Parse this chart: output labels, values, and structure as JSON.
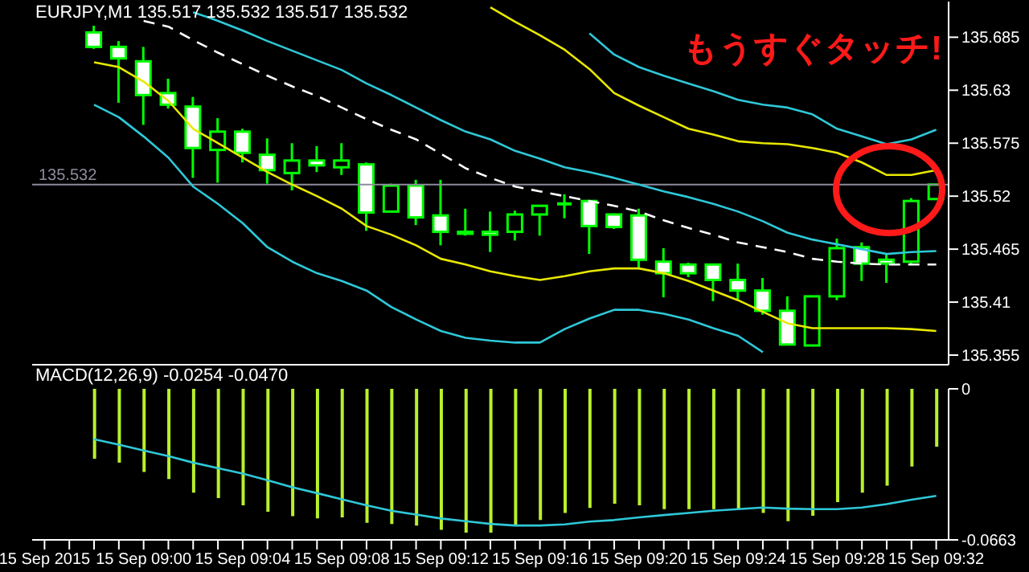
{
  "chart_data": [
    {
      "type": "candlestick",
      "title": "EURJPY,M1 135.517 135.532 135.517 135.532",
      "color": "#00ff00",
      "tick_labels": "y",
      "ohlc": [
        null,
        null,
        [
          135.69,
          135.697,
          135.673,
          135.675
        ],
        [
          135.675,
          135.681,
          135.617,
          135.663
        ],
        [
          135.66,
          135.675,
          135.594,
          135.625
        ],
        [
          135.627,
          135.642,
          135.611,
          135.615
        ],
        [
          135.613,
          135.623,
          135.539,
          135.57
        ],
        [
          135.568,
          135.601,
          135.534,
          135.587
        ],
        [
          135.587,
          135.59,
          135.555,
          135.565
        ],
        [
          135.563,
          135.58,
          135.533,
          135.547
        ],
        [
          135.544,
          135.575,
          135.526,
          135.557
        ],
        [
          135.557,
          135.572,
          135.545,
          135.552
        ],
        [
          135.55,
          135.575,
          135.542,
          135.557
        ],
        [
          135.553,
          135.555,
          135.484,
          135.503
        ],
        [
          135.504,
          135.533,
          135.504,
          135.531
        ],
        [
          135.531,
          135.537,
          135.49,
          135.498
        ],
        [
          135.5,
          135.537,
          135.469,
          135.483
        ],
        [
          135.483,
          135.507,
          135.479,
          135.481
        ],
        [
          135.483,
          135.504,
          135.462,
          135.48
        ],
        [
          135.483,
          135.505,
          135.474,
          135.501
        ],
        [
          135.501,
          135.51,
          135.479,
          135.51
        ],
        [
          135.512,
          135.522,
          135.497,
          135.512
        ],
        [
          135.515,
          135.515,
          135.46,
          135.489
        ],
        [
          135.501,
          135.502,
          135.486,
          135.488
        ],
        [
          135.5,
          135.507,
          135.444,
          135.454
        ],
        [
          135.452,
          135.466,
          135.415,
          135.44
        ],
        [
          135.449,
          135.451,
          135.436,
          135.44
        ],
        [
          135.449,
          135.45,
          135.411,
          135.433
        ],
        [
          135.433,
          135.45,
          135.413,
          135.422
        ],
        [
          135.422,
          135.435,
          135.397,
          135.401
        ],
        [
          135.401,
          135.416,
          135.366,
          135.366
        ],
        [
          135.365,
          135.416,
          135.365,
          135.416
        ],
        [
          135.416,
          135.476,
          135.412,
          135.466
        ],
        [
          135.467,
          135.472,
          135.432,
          135.45
        ],
        [
          135.454,
          135.46,
          135.43,
          135.45
        ],
        [
          135.452,
          135.518,
          135.45,
          135.515
        ],
        [
          135.517,
          135.532,
          135.517,
          135.532
        ]
      ],
      "series": [
        {
          "type": "line",
          "color": "#ffffff",
          "line_style": "dashed",
          "values": [
            null,
            null,
            null,
            null,
            135.702,
            135.696,
            135.682,
            135.669,
            135.657,
            135.645,
            135.634,
            135.624,
            135.612,
            135.6,
            135.589,
            135.579,
            135.564,
            135.549,
            135.539,
            135.53,
            135.525,
            135.52,
            135.515,
            135.51,
            135.504,
            135.495,
            135.487,
            135.48,
            135.472,
            135.467,
            135.462,
            135.455,
            135.452,
            135.45,
            135.449,
            135.449,
            135.449
          ]
        },
        {
          "type": "line",
          "color": "#e8e800",
          "values": [
            null,
            null,
            null,
            null,
            null,
            null,
            null,
            null,
            null,
            null,
            null,
            null,
            null,
            null,
            null,
            null,
            null,
            null,
            135.716,
            135.701,
            135.687,
            135.672,
            135.652,
            135.627,
            135.614,
            135.602,
            135.59,
            135.584,
            135.577,
            135.575,
            135.574,
            135.57,
            135.565,
            135.555,
            135.542,
            135.542,
            135.547
          ]
        },
        {
          "type": "line",
          "color": "#2ec8d8",
          "values": [
            null,
            null,
            null,
            null,
            null,
            null,
            null,
            null,
            null,
            null,
            null,
            null,
            null,
            null,
            null,
            null,
            null,
            null,
            null,
            null,
            null,
            null,
            135.689,
            135.667,
            135.654,
            135.645,
            135.637,
            135.629,
            135.62,
            135.615,
            135.612,
            135.605,
            135.59,
            135.582,
            135.574,
            135.579,
            135.589
          ]
        },
        {
          "type": "line",
          "color": "#2ec8d8",
          "values": [
            null,
            null,
            null,
            null,
            null,
            null,
            135.711,
            135.702,
            135.692,
            135.681,
            135.671,
            135.661,
            135.651,
            135.637,
            135.625,
            135.612,
            135.599,
            135.587,
            135.579,
            135.567,
            135.559,
            135.55,
            135.545,
            135.539,
            135.532,
            135.525,
            135.519,
            135.512,
            135.504,
            135.494,
            135.482,
            135.475,
            135.47,
            135.465,
            135.46,
            135.462,
            135.463
          ]
        },
        {
          "type": "line",
          "color": "#e8e800",
          "values": [
            null,
            null,
            135.659,
            135.654,
            135.639,
            135.619,
            135.59,
            135.575,
            135.56,
            135.545,
            135.532,
            135.52,
            135.507,
            135.489,
            135.48,
            135.469,
            135.455,
            135.449,
            135.442,
            135.437,
            135.433,
            135.437,
            135.442,
            135.445,
            135.445,
            135.44,
            135.432,
            135.422,
            135.412,
            135.4,
            135.388,
            135.383,
            135.383,
            135.383,
            135.383,
            135.382,
            135.38
          ]
        },
        {
          "type": "line",
          "color": "#2ec8d8",
          "values": [
            null,
            null,
            135.615,
            135.602,
            135.582,
            135.56,
            135.53,
            135.512,
            135.492,
            135.467,
            135.452,
            135.44,
            135.432,
            135.422,
            135.405,
            135.392,
            135.38,
            135.373,
            135.37,
            135.368,
            135.368,
            135.382,
            135.393,
            135.402,
            135.402,
            135.398,
            135.392,
            135.383,
            135.375,
            135.358,
            null,
            null,
            null,
            null,
            null,
            null,
            null
          ]
        }
      ],
      "ylim": [
        135.345,
        135.722
      ],
      "yticks": [
        135.355,
        135.41,
        135.465,
        135.52,
        135.575,
        135.63,
        135.685
      ],
      "ref_lines": [
        {
          "axis": "y",
          "value": 135.532,
          "label": "135.532",
          "color": "#8c8c9c"
        }
      ],
      "annotations": [
        "もうすぐタッチ!"
      ]
    },
    {
      "type": "bar",
      "title": "MACD(12,26,9) -0.0254 -0.0470",
      "categories": [
        "15 Sep 2015",
        null,
        null,
        null,
        "15 Sep 09:00",
        null,
        null,
        null,
        "15 Sep 09:04",
        null,
        null,
        null,
        "15 Sep 09:08",
        null,
        null,
        null,
        "15 Sep 09:12",
        null,
        null,
        null,
        "15 Sep 09:16",
        null,
        null,
        null,
        "15 Sep 09:20",
        null,
        null,
        null,
        "15 Sep 09:24",
        null,
        null,
        null,
        "15 Sep 09:28",
        null,
        null,
        null,
        "15 Sep 09:32"
      ],
      "series": [
        {
          "type": "bar",
          "color": "#b8f02c",
          "values": [
            null,
            null,
            -0.0307,
            -0.0324,
            -0.0365,
            -0.0396,
            -0.0456,
            -0.048,
            -0.0511,
            -0.054,
            -0.0559,
            -0.0569,
            -0.0564,
            -0.0588,
            -0.0593,
            -0.06,
            -0.0619,
            -0.0631,
            -0.0631,
            -0.06,
            -0.0576,
            -0.0545,
            -0.0523,
            -0.0504,
            -0.0511,
            -0.0528,
            -0.0528,
            -0.0528,
            -0.0528,
            -0.0545,
            -0.0581,
            -0.0557,
            -0.0497,
            -0.0456,
            -0.0425,
            -0.0341,
            -0.0254
          ]
        },
        {
          "type": "line",
          "color": "#2ec8d8",
          "values": [
            null,
            null,
            -0.0221,
            -0.0245,
            -0.0271,
            -0.0295,
            -0.0324,
            -0.0348,
            -0.0372,
            -0.0401,
            -0.0432,
            -0.0458,
            -0.0485,
            -0.0511,
            -0.0535,
            -0.0552,
            -0.0569,
            -0.0581,
            -0.0593,
            -0.06,
            -0.06,
            -0.0595,
            -0.0583,
            -0.0576,
            -0.0564,
            -0.0554,
            -0.0545,
            -0.0535,
            -0.0528,
            -0.0521,
            -0.0526,
            -0.0528,
            -0.0528,
            -0.0521,
            -0.0506,
            -0.0487,
            -0.047
          ]
        }
      ],
      "ylim": [
        -0.0663,
        0
      ],
      "yticks": [
        0,
        -0.0663
      ]
    }
  ]
}
